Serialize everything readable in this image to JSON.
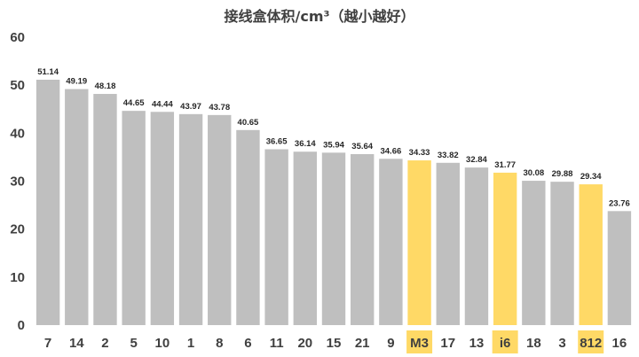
{
  "chart_data": {
    "type": "bar",
    "title": "接线盒体积/cm³（越小越好）",
    "xlabel": "",
    "ylabel": "",
    "ylim": [
      0,
      60
    ],
    "yticks": [
      0,
      10,
      20,
      30,
      40,
      50,
      60
    ],
    "grid": false,
    "legend": "none",
    "categories": [
      "7",
      "14",
      "2",
      "5",
      "10",
      "1",
      "8",
      "6",
      "11",
      "20",
      "15",
      "21",
      "9",
      "M3",
      "17",
      "13",
      "i6",
      "18",
      "3",
      "812",
      "16"
    ],
    "values": [
      51.14,
      49.19,
      48.18,
      44.65,
      44.44,
      43.97,
      43.78,
      40.65,
      36.65,
      36.14,
      35.94,
      35.64,
      34.66,
      34.33,
      33.82,
      32.84,
      31.77,
      30.08,
      29.88,
      29.34,
      23.76
    ],
    "highlighted": [
      "M3",
      "i6",
      "812"
    ],
    "colors": {
      "bar": "#BFBFBF",
      "highlight": "#FFD966",
      "text": "#404040"
    }
  }
}
